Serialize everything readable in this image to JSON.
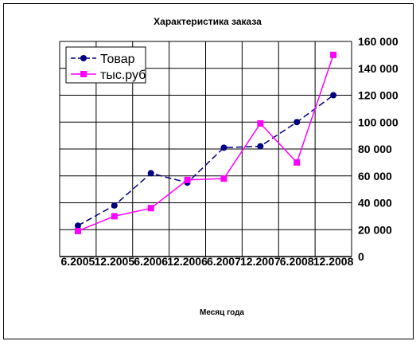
{
  "chart_data": {
    "type": "line",
    "title": "Характеристика заказа",
    "xlabel": "Месяц года",
    "ylabel": "",
    "categories": [
      "6.2005",
      "12.2005",
      "6.2006",
      "12.2006",
      "6.2007",
      "12.2007",
      "6.2008",
      "12.2008"
    ],
    "ylim": [
      0,
      160000
    ],
    "ytick_labels": [
      "0",
      "20 000",
      "40 000",
      "60 000",
      "80 000",
      "100 000",
      "120 000",
      "140 000",
      "160 000"
    ],
    "grid": true,
    "legend_position": "top-left",
    "series": [
      {
        "name": "Товар",
        "color": "#000080",
        "marker": "circle",
        "line_style": "dashed",
        "values": [
          23000,
          38000,
          62000,
          55000,
          81000,
          82000,
          100000,
          120000
        ]
      },
      {
        "name": "тыс.руб",
        "color": "#FF00FF",
        "marker": "square",
        "line_style": "solid",
        "values": [
          19000,
          30000,
          36000,
          57000,
          58000,
          99000,
          70000,
          150000
        ]
      }
    ]
  }
}
